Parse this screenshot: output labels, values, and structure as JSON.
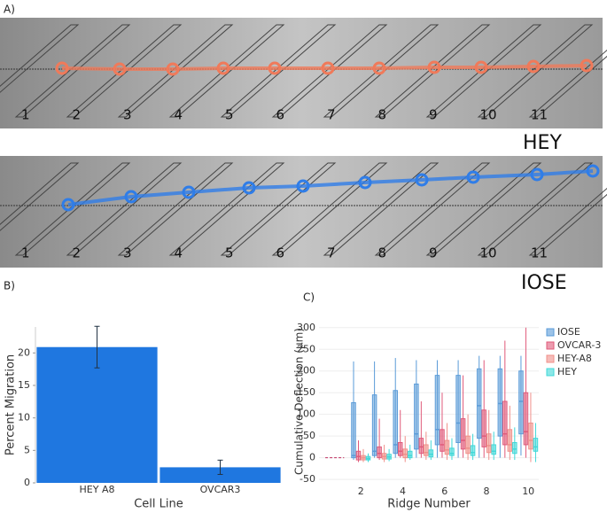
{
  "panel_labels": [
    "A)",
    "B)",
    "C)"
  ],
  "micrographs": [
    {
      "label": "HEY",
      "ridge_labels": [
        "1",
        "2",
        "3",
        "4",
        "5",
        "6",
        "7",
        "8",
        "9",
        "10",
        "11"
      ]
    },
    {
      "label": "IOSE",
      "ridge_labels": [
        "1",
        "2",
        "3",
        "4",
        "5",
        "6",
        "7",
        "8",
        "9",
        "10",
        "11"
      ]
    }
  ],
  "chart_data": [
    {
      "type": "bar",
      "xlabel": "Cell Line",
      "ylabel": "Percent Migration",
      "categories": [
        "HEY A8",
        "OVCAR3"
      ],
      "values": [
        20.9,
        2.4
      ],
      "errors": [
        3.2,
        1.1
      ],
      "color": "#1f77e0",
      "ylim": [
        0,
        24
      ],
      "yticks": [
        0,
        5,
        10,
        15,
        20
      ]
    },
    {
      "type": "box",
      "xlabel": "Ridge Number",
      "ylabel": "Cumulative Deflection (μm)",
      "x": [
        2,
        3,
        4,
        5,
        6,
        7,
        8,
        9,
        10
      ],
      "xlim": [
        0,
        10.5
      ],
      "xticks": [
        2,
        4,
        6,
        8,
        10
      ],
      "ylim": [
        -60,
        320
      ],
      "yticks": [
        -50,
        0,
        50,
        100,
        150,
        200,
        250,
        300
      ],
      "grid": true,
      "legend": "right",
      "series": [
        {
          "name": "IOSE",
          "color": "#5a9bd8",
          "low": [
            -5,
            0,
            0,
            0,
            0,
            0,
            0,
            0,
            5
          ],
          "q1": [
            0,
            5,
            10,
            20,
            30,
            35,
            45,
            50,
            55
          ],
          "median": [
            5,
            15,
            30,
            55,
            65,
            80,
            120,
            125,
            130
          ],
          "q3": [
            127,
            145,
            155,
            170,
            190,
            190,
            205,
            205,
            200
          ],
          "high": [
            222,
            222,
            230,
            225,
            225,
            225,
            235,
            235,
            235
          ]
        },
        {
          "name": "OVCAR-3",
          "color": "#e05a7a",
          "low": [
            -10,
            -5,
            0,
            0,
            0,
            0,
            0,
            0,
            0
          ],
          "q1": [
            -5,
            0,
            5,
            10,
            15,
            20,
            25,
            30,
            30
          ],
          "median": [
            3,
            10,
            15,
            25,
            30,
            40,
            50,
            55,
            60
          ],
          "q3": [
            15,
            25,
            35,
            45,
            65,
            90,
            110,
            130,
            150
          ],
          "high": [
            40,
            90,
            110,
            130,
            150,
            190,
            225,
            270,
            300
          ]
        },
        {
          "name": "HEY-A8",
          "color": "#f0908a",
          "low": [
            -10,
            -10,
            -10,
            -5,
            -5,
            -5,
            -5,
            -5,
            -10
          ],
          "q1": [
            -5,
            -3,
            0,
            5,
            8,
            10,
            12,
            15,
            20
          ],
          "median": [
            0,
            3,
            8,
            12,
            18,
            22,
            28,
            30,
            40
          ],
          "q3": [
            5,
            10,
            20,
            30,
            40,
            50,
            55,
            65,
            80
          ],
          "high": [
            20,
            30,
            50,
            60,
            80,
            100,
            110,
            120,
            150
          ]
        },
        {
          "name": "HEY",
          "color": "#40d8d8",
          "low": [
            -10,
            -8,
            -5,
            -5,
            -5,
            -5,
            -5,
            -5,
            -10
          ],
          "q1": [
            -5,
            -3,
            0,
            2,
            5,
            5,
            8,
            10,
            15
          ],
          "median": [
            -2,
            2,
            5,
            8,
            10,
            12,
            15,
            20,
            25
          ],
          "q3": [
            3,
            8,
            15,
            18,
            22,
            28,
            30,
            35,
            45
          ],
          "high": [
            10,
            20,
            30,
            40,
            45,
            55,
            60,
            70,
            80
          ]
        }
      ]
    }
  ]
}
